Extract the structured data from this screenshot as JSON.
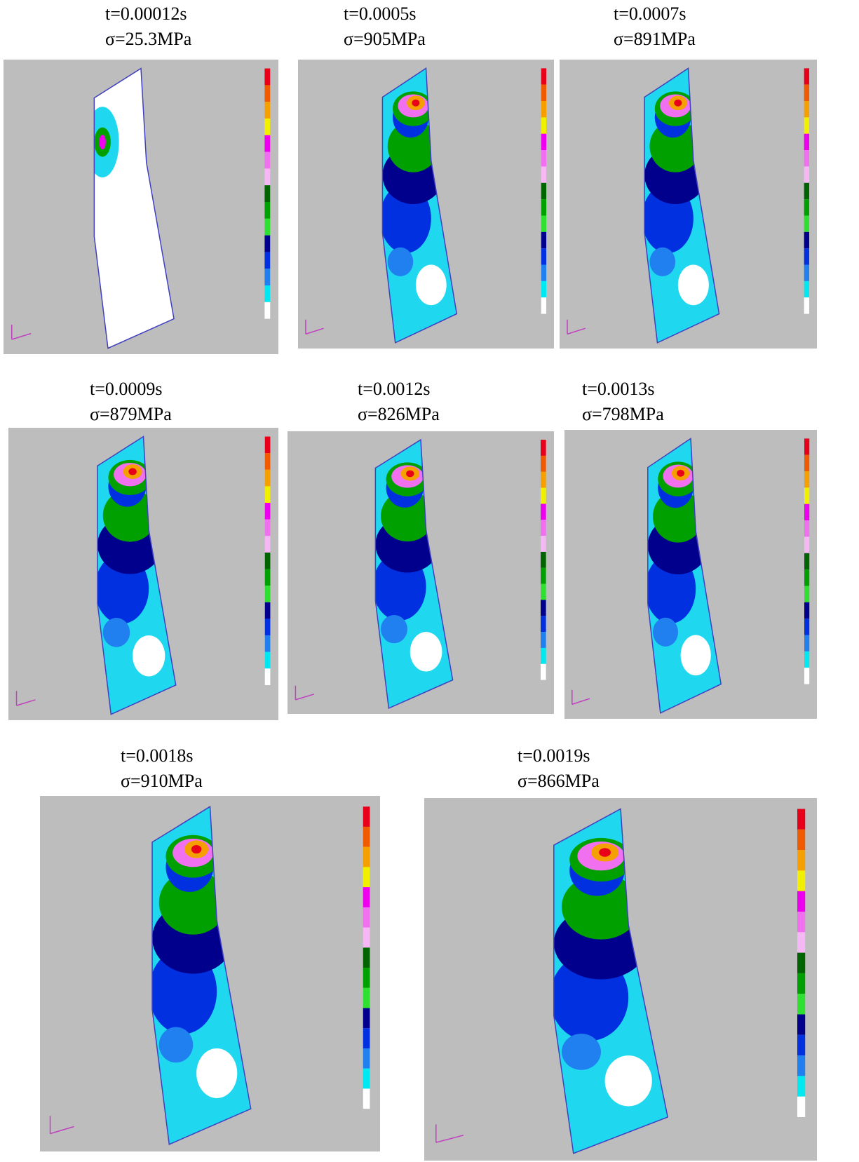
{
  "panels": [
    {
      "time": "t=0.00012s",
      "stress": "σ=25.3MPa"
    },
    {
      "time": "t=0.0005s",
      "stress": "σ=905MPa"
    },
    {
      "time": "t=0.0007s",
      "stress": "σ=891MPa"
    },
    {
      "time": "t=0.0009s",
      "stress": "σ=879MPa"
    },
    {
      "time": "t=0.0012s",
      "stress": "σ=826MPa"
    },
    {
      "time": "t=0.0013s",
      "stress": "σ=798MPa"
    },
    {
      "time": "t=0.0018s",
      "stress": "σ=910MPa"
    },
    {
      "time": "t=0.0019s",
      "stress": "σ=866MPa"
    }
  ]
}
